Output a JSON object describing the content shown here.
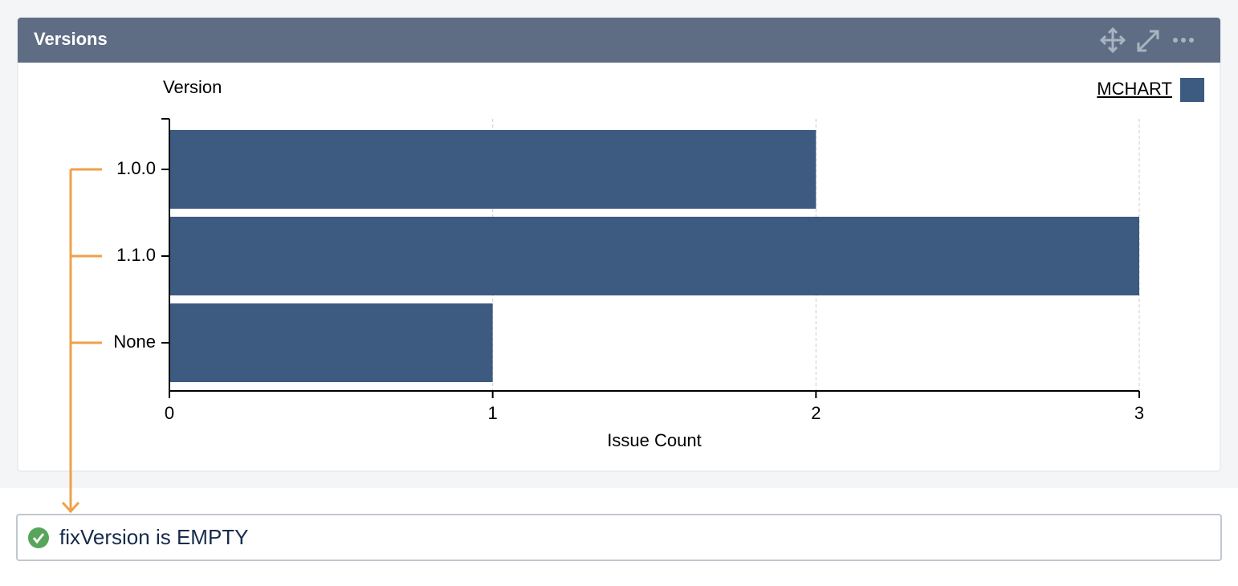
{
  "panel": {
    "title": "Versions"
  },
  "chart_data": {
    "type": "bar",
    "orientation": "horizontal",
    "y_label": "Version",
    "x_label": "Issue Count",
    "categories": [
      "1.0.0",
      "1.1.0",
      "None"
    ],
    "series": [
      {
        "name": "MCHART",
        "color": "#3d5a80",
        "values": [
          2,
          3,
          1
        ]
      }
    ],
    "xlim": [
      0,
      3
    ],
    "xticks": [
      0,
      1,
      2,
      3
    ],
    "grid": true
  },
  "query": {
    "text": "fixVersion is EMPTY"
  }
}
